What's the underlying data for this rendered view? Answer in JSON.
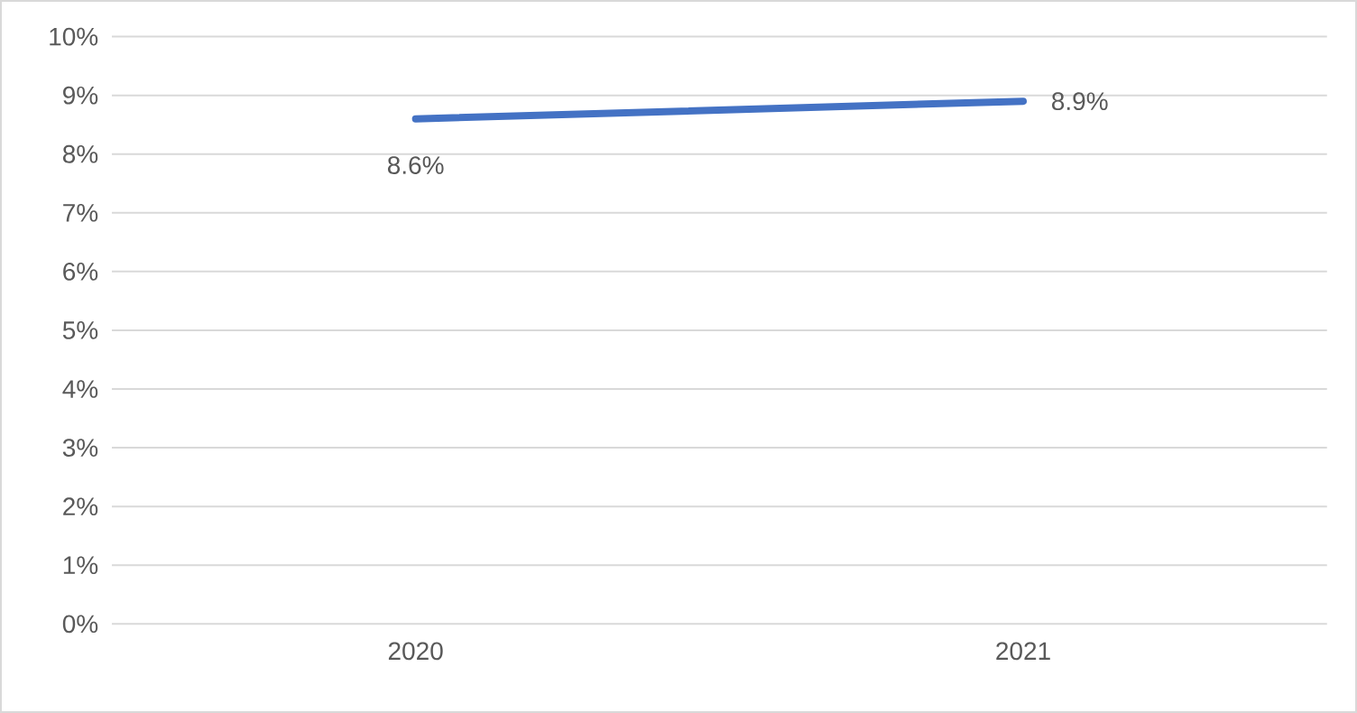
{
  "chart_data": {
    "type": "line",
    "categories": [
      "2020",
      "2021"
    ],
    "series": [
      {
        "color": "#4472c4",
        "values": [
          8.6,
          8.9
        ],
        "value_labels": [
          "8.6%",
          "8.9%"
        ]
      }
    ],
    "ylim": [
      0,
      10
    ],
    "yticks": [
      {
        "value": 0,
        "label": "0%"
      },
      {
        "value": 1,
        "label": "1%"
      },
      {
        "value": 2,
        "label": "2%"
      },
      {
        "value": 3,
        "label": "3%"
      },
      {
        "value": 4,
        "label": "4%"
      },
      {
        "value": 5,
        "label": "5%"
      },
      {
        "value": 6,
        "label": "6%"
      },
      {
        "value": 7,
        "label": "7%"
      },
      {
        "value": 8,
        "label": "8%"
      },
      {
        "value": 9,
        "label": "9%"
      },
      {
        "value": 10,
        "label": "10%"
      }
    ],
    "grid": "y",
    "marker": "none"
  }
}
